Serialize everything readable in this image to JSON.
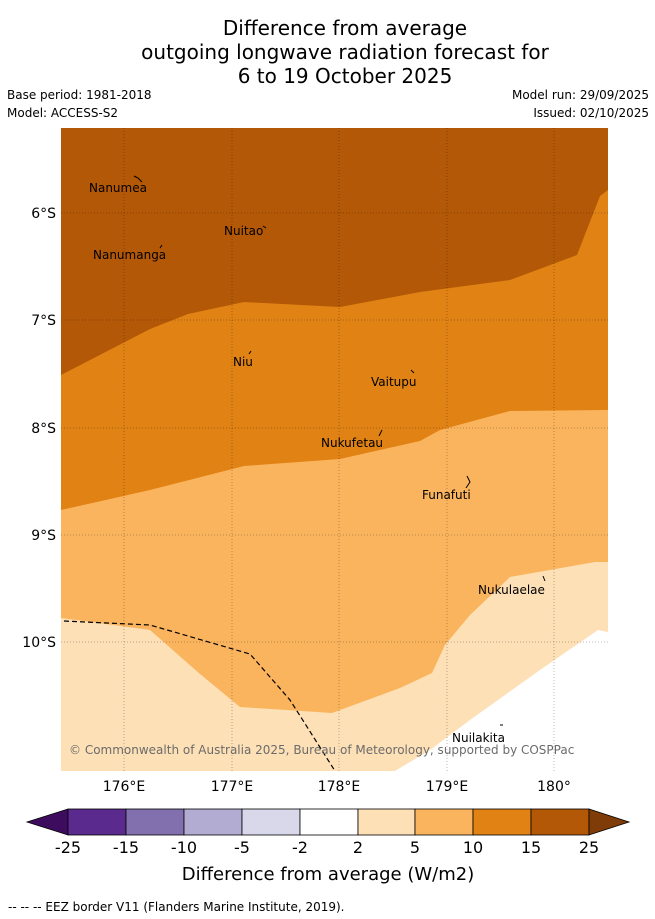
{
  "title": {
    "line1": "Difference from average",
    "line2": "outgoing longwave radiation forecast for",
    "line3": "6 to 19 October 2025"
  },
  "meta": {
    "base_period": "Base period: 1981-2018",
    "model": "Model: ACCESS-S2",
    "model_run": "Model run: 29/09/2025",
    "issued": "Issued: 02/10/2025"
  },
  "axes": {
    "lat_labels": [
      "6°S",
      "7°S",
      "8°S",
      "9°S",
      "10°S"
    ],
    "lon_labels": [
      "176°E",
      "177°E",
      "178°E",
      "179°E",
      "180°"
    ]
  },
  "islands": [
    "Nanumea",
    "Nuitao",
    "Nanumanga",
    "Niu",
    "Vaitupu",
    "Nukufetau",
    "Funafuti",
    "Nukulaelae",
    "Nuilakita"
  ],
  "copyright": "© Commonwealth of Australia 2025, Bureau of Meteorology, supported by COSPPac",
  "colorbar": {
    "ticks": [
      "-25",
      "-15",
      "-10",
      "-5",
      "-2",
      "2",
      "5",
      "10",
      "15",
      "25"
    ],
    "colors": [
      "#3d0c5e",
      "#5b2a8f",
      "#8170ad",
      "#b2acd3",
      "#d9d8eb",
      "#ffffff",
      "#fde0b6",
      "#fbb45e",
      "#e08214",
      "#b35806",
      "#7f3b08"
    ],
    "title": "Difference from average (W/m2)"
  },
  "footer": "--  --  -- EEZ border V11 (Flanders Marine Institute, 2019)."
}
